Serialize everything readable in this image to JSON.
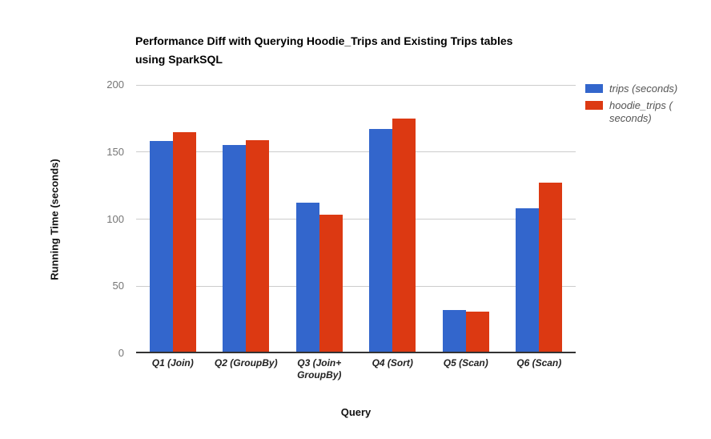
{
  "title": "Performance Diff with Querying Hoodie_Trips and Existing Trips tables\nusing SparkSQL",
  "chart_data": {
    "type": "bar",
    "categories": [
      "Q1 (Join)",
      "Q2 (GroupBy)",
      "Q3 (Join+\nGroupBy)",
      "Q4 (Sort)",
      "Q5 (Scan)",
      "Q6 (Scan)"
    ],
    "series": [
      {
        "name": "trips (seconds)",
        "color": "#3366cc",
        "values": [
          158,
          155,
          112,
          167,
          32,
          108
        ]
      },
      {
        "name": "hoodie_trips (\nseconds)",
        "color": "#dc3912",
        "values": [
          165,
          159,
          103,
          175,
          31,
          127
        ]
      }
    ],
    "xlabel": "Query",
    "ylabel": "Running Time (seconds)",
    "ylim": [
      0,
      200
    ],
    "yticks": [
      0,
      50,
      100,
      150,
      200
    ],
    "grid": true,
    "legend_position": "right",
    "colors": {
      "gridline": "#cccccc",
      "baseline": "#333333",
      "ytick_text": "#757575",
      "xtick_text": "#222222",
      "legend_text": "#555555",
      "title_text": "#000000",
      "background": "#ffffff"
    }
  }
}
